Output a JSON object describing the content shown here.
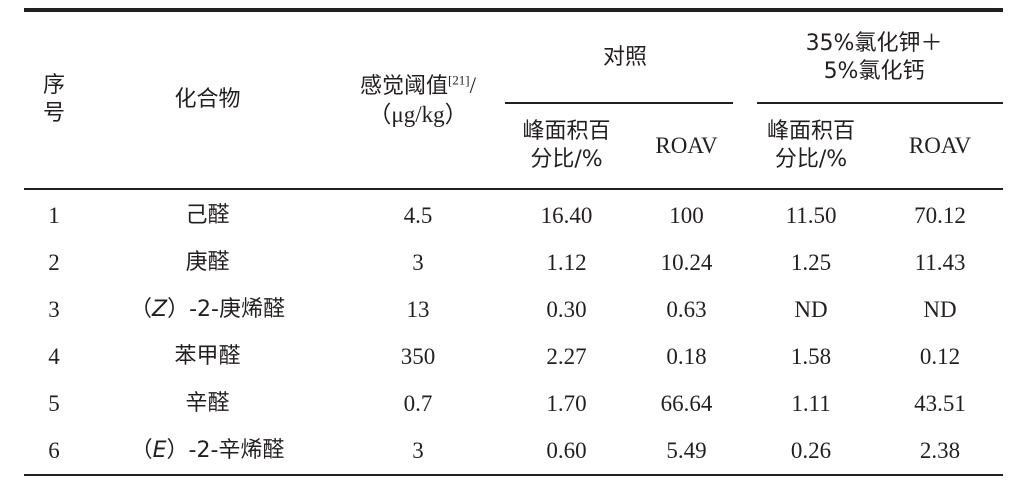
{
  "table": {
    "header": {
      "index": [
        "序",
        "号"
      ],
      "compound": "化合物",
      "threshold_line1": "感觉阈值",
      "threshold_ref": "[21]",
      "threshold_slash": "/",
      "threshold_line2": "（μg/kg）",
      "group_control": "对照",
      "group_treatment_line1": "35%氯化钾＋",
      "group_treatment_line2": "5%氯化钙",
      "peak_area_line1": "峰面积百",
      "peak_area_line2": "分比/%",
      "roav": "ROAV"
    },
    "rows": [
      {
        "no": "1",
        "prefix": "",
        "stereo": "",
        "suffix": "",
        "name": "己醛",
        "threshold": "4.5",
        "ctrl_area": "16.40",
        "ctrl_roav": "100",
        "trt_area": "11.50",
        "trt_roav": "70.12"
      },
      {
        "no": "2",
        "prefix": "",
        "stereo": "",
        "suffix": "",
        "name": "庚醛",
        "threshold": "3",
        "ctrl_area": "1.12",
        "ctrl_roav": "10.24",
        "trt_area": "1.25",
        "trt_roav": "11.43"
      },
      {
        "no": "3",
        "prefix": "（",
        "stereo": "Z",
        "suffix": "）-2-",
        "name": "庚烯醛",
        "threshold": "13",
        "ctrl_area": "0.30",
        "ctrl_roav": "0.63",
        "trt_area": "ND",
        "trt_roav": "ND"
      },
      {
        "no": "4",
        "prefix": "",
        "stereo": "",
        "suffix": "",
        "name": "苯甲醛",
        "threshold": "350",
        "ctrl_area": "2.27",
        "ctrl_roav": "0.18",
        "trt_area": "1.58",
        "trt_roav": "0.12"
      },
      {
        "no": "5",
        "prefix": "",
        "stereo": "",
        "suffix": "",
        "name": "辛醛",
        "threshold": "0.7",
        "ctrl_area": "1.70",
        "ctrl_roav": "66.64",
        "trt_area": "1.11",
        "trt_roav": "43.51"
      },
      {
        "no": "6",
        "prefix": "（",
        "stereo": "E",
        "suffix": "）-2-",
        "name": "辛烯醛",
        "threshold": "3",
        "ctrl_area": "0.60",
        "ctrl_roav": "5.49",
        "trt_area": "0.26",
        "trt_roav": "2.38"
      }
    ]
  }
}
